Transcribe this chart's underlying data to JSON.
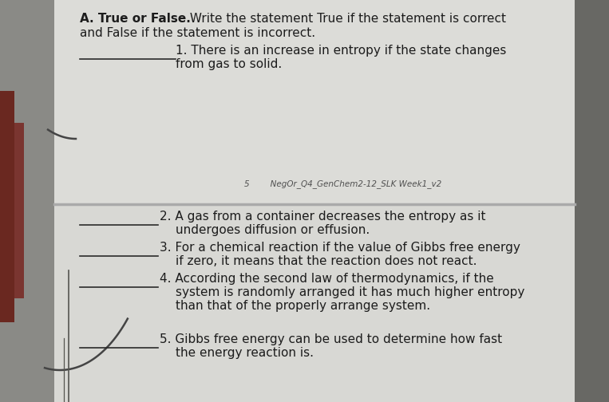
{
  "bg_outer": "#b0b0b0",
  "bg_top_panel": "#d8d8d4",
  "bg_bottom_panel": "#d4d4d0",
  "bg_separator": "#c0c0bc",
  "font_color": "#1c1c1c",
  "line_color": "#2a2a2a",
  "curve_color": "#444444",
  "left_hand_color": "#8B4040",
  "right_dark_color": "#606060",
  "title_bold": "A. True or False.",
  "title_rest": " Write the statement True if the statement is correct",
  "title_line2": "and False if the statement is incorrect.",
  "center_num": "5",
  "center_ref": "NegOr_Q4_GenChem2-12_SLK Week1_v2",
  "item1_line1": "1. There is an increase in entropy if the state changes",
  "item1_line2": "from gas to solid.",
  "item2_line1": "2. A gas from a container decreases the entropy as it",
  "item2_line2": "undergoes diffusion or effusion.",
  "item3_line1": "3. For a chemical reaction if the value of Gibbs free energy",
  "item3_line2": "if zero, it means that the reaction does not react.",
  "item4_line1": "4. According the second law of thermodynamics, if the",
  "item4_line2": "system is randomly arranged it has much higher entropy",
  "item4_line3": "than that of the properly arrange system.",
  "item5_line1": "5. Gibbs free energy can be used to determine how fast",
  "item5_line2": "the energy reaction is.",
  "figw": 7.63,
  "figh": 5.04,
  "dpi": 100
}
